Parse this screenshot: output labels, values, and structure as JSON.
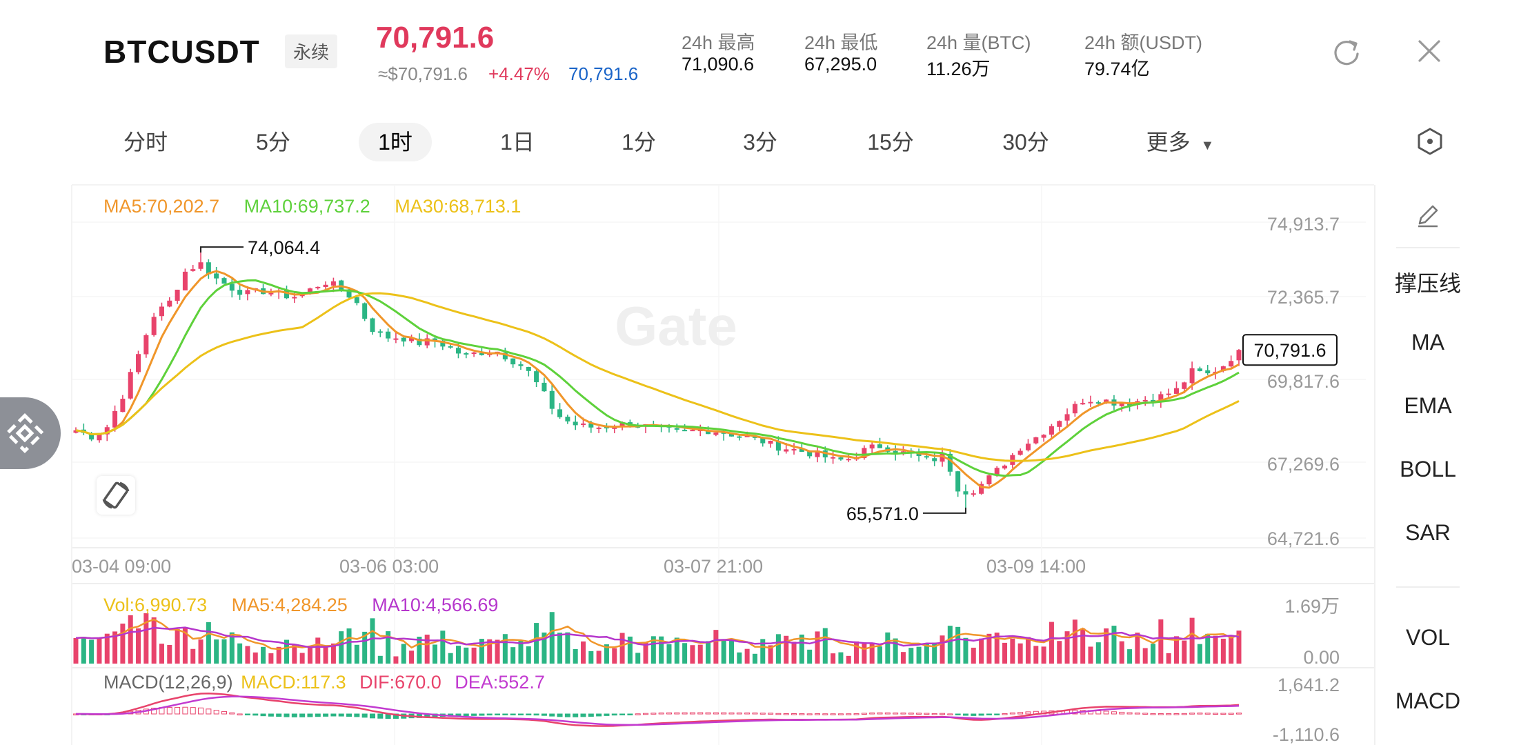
{
  "header": {
    "symbol": "BTCUSDT",
    "perp_label": "永续",
    "last_price": "70,791.6",
    "approx_usd": "≈$70,791.6",
    "change_pct": "+4.47%",
    "mark_price": "70,791.6",
    "stats": [
      {
        "label": "24h  最高",
        "value": "71,090.6"
      },
      {
        "label": "24h  最低",
        "value": "67,295.0"
      },
      {
        "label": "24h  量(BTC)",
        "value": "11.26万"
      },
      {
        "label": "24h  额(USDT)",
        "value": "79.74亿"
      }
    ]
  },
  "intervals": {
    "tabs": [
      "分时",
      "5分",
      "1时",
      "1日",
      "1分",
      "3分",
      "15分",
      "30分",
      "更多"
    ],
    "active": "1时"
  },
  "side_panel": {
    "draw_tools": [
      "撑压线",
      "MA",
      "EMA",
      "BOLL",
      "SAR"
    ],
    "indicators": [
      "VOL",
      "MACD"
    ]
  },
  "watermark": "Gate",
  "colors": {
    "up": "#e8436b",
    "down": "#2bb584",
    "ma5": "#f0962a",
    "ma10": "#5ed13b",
    "ma30": "#ecc119",
    "vol_ma10": "#b536cc",
    "dea": "#c23bd0"
  },
  "chart_data": {
    "type": "candlestick",
    "legend_main": {
      "ma5": "MA5:70,202.7",
      "ma10": "MA10:69,737.2",
      "ma30": "MA30:68,713.1"
    },
    "y_ticks": [
      "74,913.7",
      "72,365.7",
      "69,817.6",
      "67,269.6",
      "64,721.6"
    ],
    "ylim": [
      64721.6,
      74913.7
    ],
    "x_ticks": [
      "03-04 09:00",
      "03-06 03:00",
      "03-07 21:00",
      "03-09 14:00"
    ],
    "annotations": {
      "high": "74,064.4",
      "low": "65,571.0",
      "last": "70,791.6"
    },
    "high_value": 74064.4,
    "low_value": 65571.0,
    "last_value": 70791.6,
    "key_closes": [
      68200,
      68000,
      68300,
      69300,
      70600,
      71900,
      72300,
      73300,
      73600,
      73100,
      72800,
      72600,
      72700,
      72600,
      72500,
      72700,
      73000,
      72800,
      72400,
      71500,
      71200,
      71200,
      71000,
      71100,
      70900,
      70600,
      70700,
      70800,
      70500,
      70200,
      69500,
      68700,
      68400,
      68300,
      68300,
      68400,
      68400,
      68300,
      68200,
      68100,
      68200,
      68200,
      68100,
      68000,
      67900,
      67700,
      67600,
      67500,
      67400,
      67200,
      67300,
      67600,
      67700,
      67500,
      67400,
      67200,
      67400,
      66200,
      66300,
      66700,
      67200,
      67700,
      68000,
      68400,
      68800,
      69200,
      69200,
      69100,
      69100,
      69200,
      69300,
      69500,
      70100,
      70000,
      70300,
      70791.6
    ],
    "volume": {
      "legend": {
        "vol": "Vol:6,990.73",
        "ma5": "MA5:4,284.25",
        "ma10": "MA10:4,566.69"
      },
      "y_ticks": [
        "1.69万",
        "0.00"
      ],
      "ylim": [
        0,
        16900
      ]
    },
    "macd": {
      "legend": {
        "params": "MACD(12,26,9)",
        "macd": "MACD:117.3",
        "dif": "DIF:670.0",
        "dea": "DEA:552.7"
      },
      "y_ticks": [
        "1,641.2",
        "-1,110.6"
      ],
      "ylim": [
        -1110.6,
        1641.2
      ]
    }
  }
}
